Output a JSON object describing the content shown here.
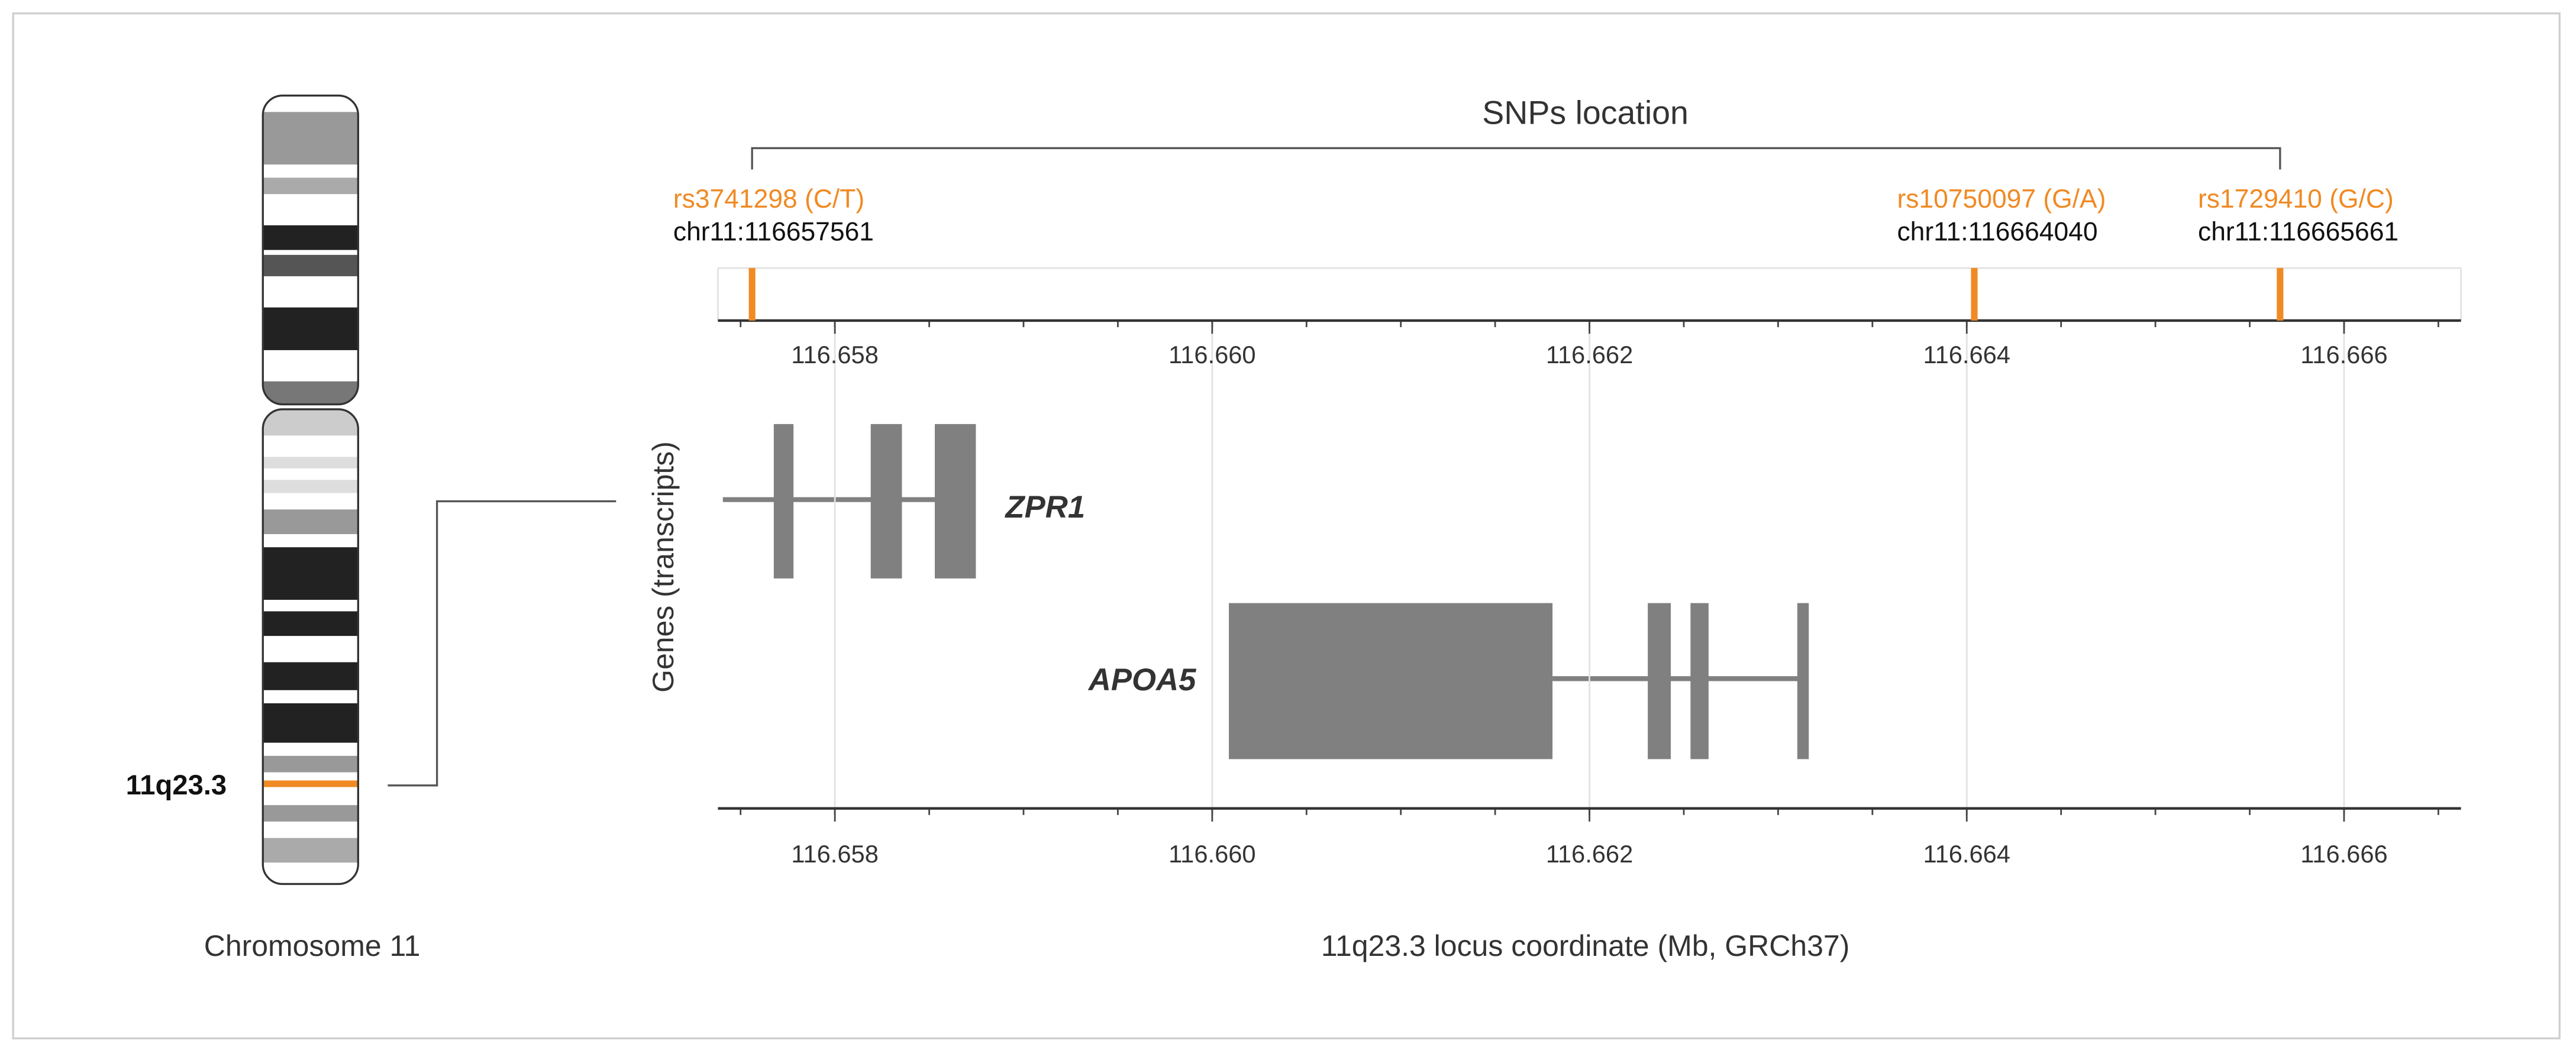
{
  "chart_data": {
    "type": "locus",
    "title": "SNPs location",
    "chromosome": {
      "label": "Chromosome 11",
      "band": "11q23.3"
    },
    "xlabel": "11q23.3 locus coordinate (Mb, GRCh37)",
    "ylabel": "Genes (transcripts)",
    "xlim": [
      116.65738,
      116.66662
    ],
    "xticks": [
      116.658,
      {
        "value": 116.66,
        "label": "116.660"
      },
      116.662,
      116.664,
      116.666
    ],
    "snps": [
      {
        "name": "rs3741298 (C/T)",
        "location": "chr11:116657561",
        "position": 116.657561
      },
      {
        "name": "rs10750097 (G/A)",
        "location": "chr11:116664040",
        "position": 116.66404
      },
      {
        "name": "rs1729410 (G/C)",
        "location": "chr11:116665661",
        "position": 116.665661
      }
    ],
    "snp_color": "#f08a24",
    "genes": [
      {
        "name": "ZPR1"
      },
      {
        "name": "APOA5"
      }
    ],
    "grid": true
  }
}
